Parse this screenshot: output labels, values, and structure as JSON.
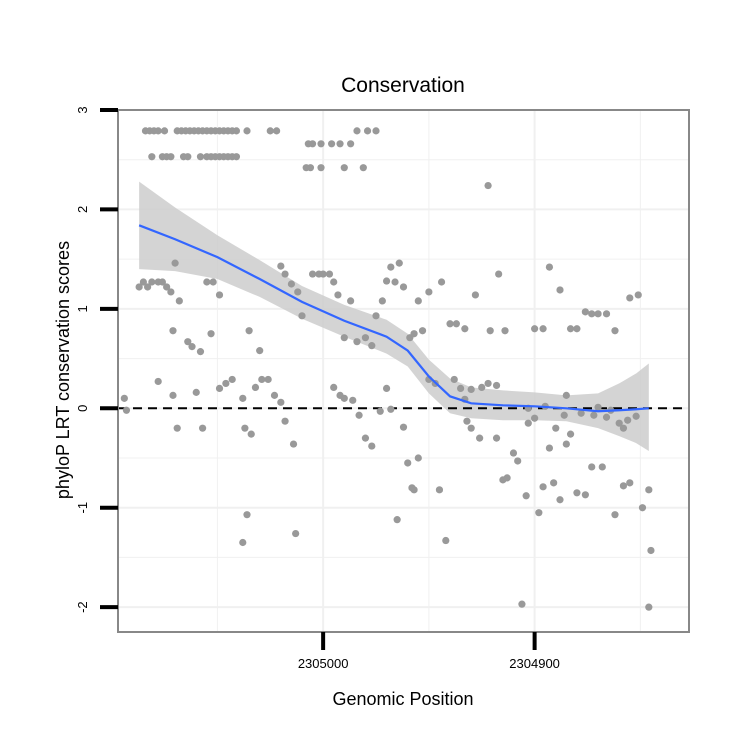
{
  "chart_data": {
    "type": "scatter",
    "title": "Conservation",
    "xlabel": "Genomic Position",
    "ylabel": "phyloP LRT conservation scores",
    "x_reversed": true,
    "xlim": [
      2305097,
      2304827
    ],
    "ylim": [
      -2.25,
      3.0
    ],
    "x_ticks": [
      2305000,
      2304900
    ],
    "y_ticks": [
      -2,
      -1,
      0,
      1,
      2,
      3
    ],
    "x_tick_labels": [
      "2305000",
      "2304900"
    ],
    "y_tick_labels": [
      "-2",
      "-1",
      "0",
      "1",
      "2",
      "3"
    ],
    "reference_line": {
      "y": 0,
      "style": "dashed"
    },
    "grid": true,
    "legend": "none",
    "colors": {
      "points": "#999999",
      "smooth_line": "#3366ff",
      "confidence_band": "#cccccc",
      "panel_border": "#888888",
      "grid": "#f0f0f0"
    },
    "points": [
      {
        "x": 2305084,
        "y": 2.79
      },
      {
        "x": 2305082,
        "y": 2.79
      },
      {
        "x": 2305080,
        "y": 2.79
      },
      {
        "x": 2305078,
        "y": 2.79
      },
      {
        "x": 2305075,
        "y": 2.79
      },
      {
        "x": 2305081,
        "y": 2.53
      },
      {
        "x": 2305076,
        "y": 2.53
      },
      {
        "x": 2305074,
        "y": 2.53
      },
      {
        "x": 2305072,
        "y": 2.53
      },
      {
        "x": 2305069,
        "y": 2.79
      },
      {
        "x": 2305067,
        "y": 2.79
      },
      {
        "x": 2305065,
        "y": 2.79
      },
      {
        "x": 2305063,
        "y": 2.79
      },
      {
        "x": 2305061,
        "y": 2.79
      },
      {
        "x": 2305059,
        "y": 2.79
      },
      {
        "x": 2305057,
        "y": 2.79
      },
      {
        "x": 2305055,
        "y": 2.79
      },
      {
        "x": 2305053,
        "y": 2.79
      },
      {
        "x": 2305051,
        "y": 2.79
      },
      {
        "x": 2305049,
        "y": 2.79
      },
      {
        "x": 2305047,
        "y": 2.79
      },
      {
        "x": 2305045,
        "y": 2.79
      },
      {
        "x": 2305043,
        "y": 2.79
      },
      {
        "x": 2305041,
        "y": 2.79
      },
      {
        "x": 2305036,
        "y": 2.79
      },
      {
        "x": 2305025,
        "y": 2.79
      },
      {
        "x": 2305022,
        "y": 2.79
      },
      {
        "x": 2305066,
        "y": 2.53
      },
      {
        "x": 2305064,
        "y": 2.53
      },
      {
        "x": 2305058,
        "y": 2.53
      },
      {
        "x": 2305055,
        "y": 2.53
      },
      {
        "x": 2305053,
        "y": 2.53
      },
      {
        "x": 2305051,
        "y": 2.53
      },
      {
        "x": 2305049,
        "y": 2.53
      },
      {
        "x": 2305047,
        "y": 2.53
      },
      {
        "x": 2305045,
        "y": 2.53
      },
      {
        "x": 2305043,
        "y": 2.53
      },
      {
        "x": 2305041,
        "y": 2.53
      },
      {
        "x": 2305007,
        "y": 2.66
      },
      {
        "x": 2305005,
        "y": 2.66
      },
      {
        "x": 2305001,
        "y": 2.66
      },
      {
        "x": 2304996,
        "y": 2.66
      },
      {
        "x": 2304992,
        "y": 2.66
      },
      {
        "x": 2304987,
        "y": 2.66
      },
      {
        "x": 2304984,
        "y": 2.79
      },
      {
        "x": 2304979,
        "y": 2.79
      },
      {
        "x": 2304975,
        "y": 2.79
      },
      {
        "x": 2305008,
        "y": 2.42
      },
      {
        "x": 2305006,
        "y": 2.42
      },
      {
        "x": 2305001,
        "y": 2.42
      },
      {
        "x": 2304990,
        "y": 2.42
      },
      {
        "x": 2304981,
        "y": 2.42
      },
      {
        "x": 2304922,
        "y": 2.24
      },
      {
        "x": 2305087,
        "y": 1.22
      },
      {
        "x": 2305085,
        "y": 1.27
      },
      {
        "x": 2305083,
        "y": 1.22
      },
      {
        "x": 2305081,
        "y": 1.27
      },
      {
        "x": 2305078,
        "y": 1.27
      },
      {
        "x": 2305076,
        "y": 1.27
      },
      {
        "x": 2305074,
        "y": 1.22
      },
      {
        "x": 2305072,
        "y": 1.17
      },
      {
        "x": 2305070,
        "y": 1.46
      },
      {
        "x": 2305068,
        "y": 1.08
      },
      {
        "x": 2305064,
        "y": 0.67
      },
      {
        "x": 2305062,
        "y": 0.62
      },
      {
        "x": 2305058,
        "y": 0.57
      },
      {
        "x": 2305071,
        "y": 0.78
      },
      {
        "x": 2305055,
        "y": 1.27
      },
      {
        "x": 2305052,
        "y": 1.27
      },
      {
        "x": 2305049,
        "y": 1.14
      },
      {
        "x": 2305053,
        "y": 0.75
      },
      {
        "x": 2305035,
        "y": 0.78
      },
      {
        "x": 2305030,
        "y": 0.58
      },
      {
        "x": 2305020,
        "y": 1.43
      },
      {
        "x": 2305018,
        "y": 1.35
      },
      {
        "x": 2305015,
        "y": 1.25
      },
      {
        "x": 2305012,
        "y": 1.17
      },
      {
        "x": 2305010,
        "y": 0.93
      },
      {
        "x": 2305005,
        "y": 1.35
      },
      {
        "x": 2305002,
        "y": 1.35
      },
      {
        "x": 2305000,
        "y": 1.35
      },
      {
        "x": 2304997,
        "y": 1.35
      },
      {
        "x": 2304995,
        "y": 1.27
      },
      {
        "x": 2304993,
        "y": 1.14
      },
      {
        "x": 2304990,
        "y": 0.71
      },
      {
        "x": 2304987,
        "y": 1.08
      },
      {
        "x": 2304984,
        "y": 0.67
      },
      {
        "x": 2304980,
        "y": 0.71
      },
      {
        "x": 2304977,
        "y": 0.63
      },
      {
        "x": 2304975,
        "y": 0.93
      },
      {
        "x": 2304972,
        "y": 1.08
      },
      {
        "x": 2304970,
        "y": 1.28
      },
      {
        "x": 2304968,
        "y": 1.42
      },
      {
        "x": 2304966,
        "y": 1.27
      },
      {
        "x": 2304964,
        "y": 1.46
      },
      {
        "x": 2304962,
        "y": 1.22
      },
      {
        "x": 2304959,
        "y": 0.71
      },
      {
        "x": 2304957,
        "y": 0.75
      },
      {
        "x": 2304955,
        "y": 1.08
      },
      {
        "x": 2304953,
        "y": 0.78
      },
      {
        "x": 2304950,
        "y": 1.17
      },
      {
        "x": 2304944,
        "y": 1.27
      },
      {
        "x": 2304940,
        "y": 0.85
      },
      {
        "x": 2304937,
        "y": 0.85
      },
      {
        "x": 2304933,
        "y": 0.8
      },
      {
        "x": 2304928,
        "y": 1.14
      },
      {
        "x": 2304921,
        "y": 0.78
      },
      {
        "x": 2304914,
        "y": 0.78
      },
      {
        "x": 2304917,
        "y": 1.35
      },
      {
        "x": 2304900,
        "y": 0.8
      },
      {
        "x": 2304896,
        "y": 0.8
      },
      {
        "x": 2304893,
        "y": 1.42
      },
      {
        "x": 2304888,
        "y": 1.19
      },
      {
        "x": 2304883,
        "y": 0.8
      },
      {
        "x": 2304880,
        "y": 0.8
      },
      {
        "x": 2304876,
        "y": 0.97
      },
      {
        "x": 2304873,
        "y": 0.95
      },
      {
        "x": 2304870,
        "y": 0.95
      },
      {
        "x": 2304866,
        "y": 0.95
      },
      {
        "x": 2304862,
        "y": 0.78
      },
      {
        "x": 2304855,
        "y": 1.11
      },
      {
        "x": 2304851,
        "y": 1.14
      },
      {
        "x": 2305094,
        "y": 0.1
      },
      {
        "x": 2305093,
        "y": -0.02
      },
      {
        "x": 2305078,
        "y": 0.27
      },
      {
        "x": 2305071,
        "y": 0.13
      },
      {
        "x": 2305069,
        "y": -0.2
      },
      {
        "x": 2305060,
        "y": 0.16
      },
      {
        "x": 2305057,
        "y": -0.2
      },
      {
        "x": 2305049,
        "y": 0.2
      },
      {
        "x": 2305046,
        "y": 0.25
      },
      {
        "x": 2305043,
        "y": 0.29
      },
      {
        "x": 2305038,
        "y": 0.1
      },
      {
        "x": 2305037,
        "y": -0.2
      },
      {
        "x": 2305034,
        "y": -0.26
      },
      {
        "x": 2305032,
        "y": 0.21
      },
      {
        "x": 2305029,
        "y": 0.29
      },
      {
        "x": 2305026,
        "y": 0.29
      },
      {
        "x": 2305023,
        "y": 0.13
      },
      {
        "x": 2305020,
        "y": 0.06
      },
      {
        "x": 2305018,
        "y": -0.13
      },
      {
        "x": 2305014,
        "y": -0.36
      },
      {
        "x": 2305013,
        "y": -1.26
      },
      {
        "x": 2305038,
        "y": -1.35
      },
      {
        "x": 2305036,
        "y": -1.07
      },
      {
        "x": 2304995,
        "y": 0.21
      },
      {
        "x": 2304992,
        "y": 0.13
      },
      {
        "x": 2304990,
        "y": 0.1
      },
      {
        "x": 2304986,
        "y": 0.08
      },
      {
        "x": 2304983,
        "y": -0.07
      },
      {
        "x": 2304980,
        "y": -0.3
      },
      {
        "x": 2304977,
        "y": -0.38
      },
      {
        "x": 2304973,
        "y": -0.03
      },
      {
        "x": 2304970,
        "y": 0.2
      },
      {
        "x": 2304968,
        "y": -0.01
      },
      {
        "x": 2304965,
        "y": -1.12
      },
      {
        "x": 2304962,
        "y": -0.19
      },
      {
        "x": 2304960,
        "y": -0.55
      },
      {
        "x": 2304958,
        "y": -0.8
      },
      {
        "x": 2304957,
        "y": -0.82
      },
      {
        "x": 2304955,
        "y": -0.5
      },
      {
        "x": 2304950,
        "y": 0.29
      },
      {
        "x": 2304947,
        "y": 0.25
      },
      {
        "x": 2304945,
        "y": -0.82
      },
      {
        "x": 2304942,
        "y": -1.33
      },
      {
        "x": 2304938,
        "y": 0.29
      },
      {
        "x": 2304935,
        "y": 0.2
      },
      {
        "x": 2304932,
        "y": -0.13
      },
      {
        "x": 2304930,
        "y": -0.2
      },
      {
        "x": 2304926,
        "y": -0.3
      },
      {
        "x": 2304922,
        "y": 0.25
      },
      {
        "x": 2304918,
        "y": 0.23
      },
      {
        "x": 2304915,
        "y": -0.72
      },
      {
        "x": 2304913,
        "y": -0.7
      },
      {
        "x": 2304910,
        "y": -0.45
      },
      {
        "x": 2304908,
        "y": -0.53
      },
      {
        "x": 2304906,
        "y": -1.97
      },
      {
        "x": 2304904,
        "y": -0.88
      },
      {
        "x": 2304903,
        "y": -0.15
      },
      {
        "x": 2304900,
        "y": -0.1
      },
      {
        "x": 2304898,
        "y": -1.05
      },
      {
        "x": 2304896,
        "y": -0.79
      },
      {
        "x": 2304893,
        "y": -0.4
      },
      {
        "x": 2304891,
        "y": -0.75
      },
      {
        "x": 2304888,
        "y": -0.92
      },
      {
        "x": 2304885,
        "y": -0.36
      },
      {
        "x": 2304883,
        "y": -0.26
      },
      {
        "x": 2304880,
        "y": -0.85
      },
      {
        "x": 2304876,
        "y": -0.87
      },
      {
        "x": 2304873,
        "y": -0.59
      },
      {
        "x": 2304868,
        "y": -0.59
      },
      {
        "x": 2304862,
        "y": -1.07
      },
      {
        "x": 2304858,
        "y": -0.78
      },
      {
        "x": 2304855,
        "y": -0.75
      },
      {
        "x": 2304849,
        "y": -1.0
      },
      {
        "x": 2304846,
        "y": -0.82
      },
      {
        "x": 2304845,
        "y": -1.43
      },
      {
        "x": 2304846,
        "y": -2.0
      },
      {
        "x": 2304895,
        "y": 0.02
      },
      {
        "x": 2304890,
        "y": -0.2
      },
      {
        "x": 2304886,
        "y": -0.07
      },
      {
        "x": 2304878,
        "y": -0.05
      },
      {
        "x": 2304872,
        "y": -0.07
      },
      {
        "x": 2304866,
        "y": -0.09
      },
      {
        "x": 2304860,
        "y": -0.15
      },
      {
        "x": 2304856,
        "y": -0.12
      },
      {
        "x": 2304852,
        "y": -0.08
      },
      {
        "x": 2304870,
        "y": 0.01
      },
      {
        "x": 2304864,
        "y": -0.02
      },
      {
        "x": 2304858,
        "y": -0.2
      },
      {
        "x": 2304885,
        "y": 0.13
      },
      {
        "x": 2304903,
        "y": 0.0
      },
      {
        "x": 2304918,
        "y": -0.3
      },
      {
        "x": 2304925,
        "y": 0.21
      },
      {
        "x": 2304930,
        "y": 0.19
      },
      {
        "x": 2304933,
        "y": 0.09
      }
    ],
    "smooth": [
      {
        "x": 2305087,
        "y": 1.84,
        "lo": 1.4,
        "hi": 2.28
      },
      {
        "x": 2305070,
        "y": 1.7,
        "lo": 1.38,
        "hi": 2.02
      },
      {
        "x": 2305050,
        "y": 1.52,
        "lo": 1.3,
        "hi": 1.74
      },
      {
        "x": 2305030,
        "y": 1.3,
        "lo": 1.12,
        "hi": 1.49
      },
      {
        "x": 2305010,
        "y": 1.07,
        "lo": 0.9,
        "hi": 1.23
      },
      {
        "x": 2304990,
        "y": 0.88,
        "lo": 0.72,
        "hi": 1.04
      },
      {
        "x": 2304970,
        "y": 0.72,
        "lo": 0.55,
        "hi": 0.89
      },
      {
        "x": 2304960,
        "y": 0.58,
        "lo": 0.42,
        "hi": 0.75
      },
      {
        "x": 2304950,
        "y": 0.32,
        "lo": 0.15,
        "hi": 0.49
      },
      {
        "x": 2304940,
        "y": 0.12,
        "lo": -0.05,
        "hi": 0.3
      },
      {
        "x": 2304930,
        "y": 0.05,
        "lo": -0.1,
        "hi": 0.21
      },
      {
        "x": 2304915,
        "y": 0.03,
        "lo": -0.12,
        "hi": 0.18
      },
      {
        "x": 2304900,
        "y": 0.02,
        "lo": -0.12,
        "hi": 0.16
      },
      {
        "x": 2304885,
        "y": 0.0,
        "lo": -0.13,
        "hi": 0.13
      },
      {
        "x": 2304870,
        "y": -0.03,
        "lo": -0.2,
        "hi": 0.15
      },
      {
        "x": 2304860,
        "y": -0.02,
        "lo": -0.28,
        "hi": 0.25
      },
      {
        "x": 2304852,
        "y": -0.01,
        "lo": -0.35,
        "hi": 0.35
      },
      {
        "x": 2304846,
        "y": 0.0,
        "lo": -0.43,
        "hi": 0.45
      }
    ]
  }
}
